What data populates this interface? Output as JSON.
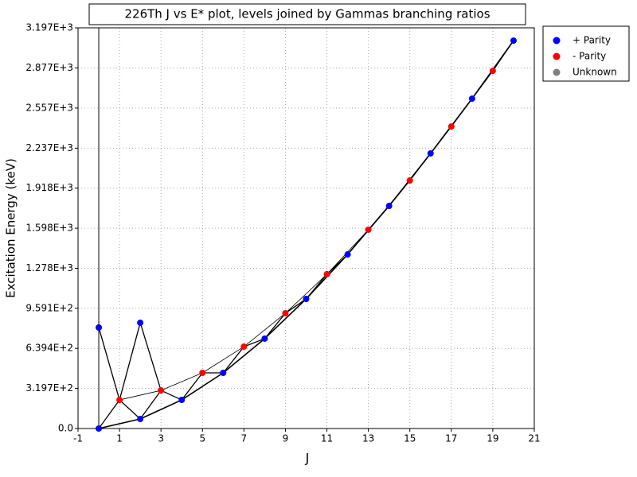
{
  "chart_data": {
    "type": "scatter",
    "title": "226Th J vs E* plot, levels joined by Gammas branching ratios",
    "x_label": "J",
    "y_label": "Excitation Energy (keV)",
    "xlim": [
      -1,
      21
    ],
    "xticks": [
      -1,
      1,
      3,
      5,
      7,
      9,
      11,
      13,
      15,
      17,
      19,
      21
    ],
    "ylim": [
      0,
      3197
    ],
    "yticks": [
      {
        "value": 0,
        "label": "0.0"
      },
      {
        "value": 319.7,
        "label": "3.197E+2"
      },
      {
        "value": 639.4,
        "label": "6.394E+2"
      },
      {
        "value": 959.1,
        "label": "9.591E+2"
      },
      {
        "value": 1278,
        "label": "1.278E+3"
      },
      {
        "value": 1598,
        "label": "1.598E+3"
      },
      {
        "value": 1918,
        "label": "1.918E+3"
      },
      {
        "value": 2237,
        "label": "2.237E+3"
      },
      {
        "value": 2557,
        "label": "2.557E+3"
      },
      {
        "value": 2877,
        "label": "2.877E+3"
      },
      {
        "value": 3197,
        "label": "3.197E+3"
      }
    ],
    "grid": true,
    "legend": "outside-right",
    "series": [
      {
        "name": "+ Parity",
        "color": "#0000ff",
        "x": [
          0,
          0,
          2,
          2,
          4,
          6,
          8,
          10,
          12,
          14,
          16,
          18,
          20
        ],
        "values": [
          0,
          806,
          76,
          844,
          228,
          444,
          717,
          1034,
          1389,
          1776,
          2195,
          2632,
          3095
        ]
      },
      {
        "name": "- Parity",
        "color": "#ff0000",
        "x": [
          1,
          3,
          5,
          7,
          9,
          11,
          13,
          15,
          17,
          19
        ],
        "values": [
          228,
          304,
          444,
          653,
          920,
          1231,
          1586,
          1979,
          2410,
          2854
        ]
      },
      {
        "name": "Unknown",
        "color": "#808080",
        "x": [],
        "values": []
      }
    ]
  }
}
